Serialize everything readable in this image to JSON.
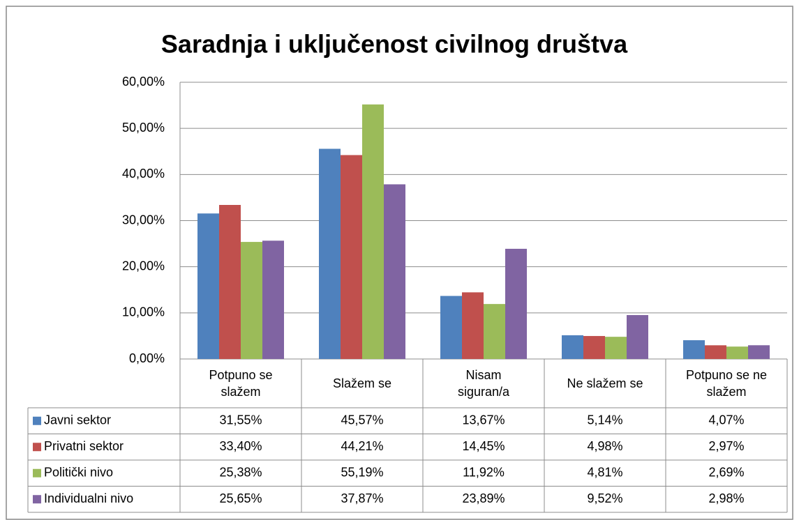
{
  "chart_data": {
    "type": "bar",
    "title": "Saradnja i uključenost civilnog društva",
    "categories": [
      "Potpuno se slažem",
      "Slažem se",
      "Nisam siguran/a",
      "Ne slažem se",
      "Potpuno se ne slažem"
    ],
    "series": [
      {
        "name": "Javni sektor",
        "color": "#4f81bd",
        "values": [
          31.55,
          45.57,
          13.67,
          5.14,
          4.07
        ],
        "value_labels": [
          "31,55%",
          "45,57%",
          "13,67%",
          "5,14%",
          "4,07%"
        ]
      },
      {
        "name": "Privatni sektor",
        "color": "#c0504d",
        "values": [
          33.4,
          44.21,
          14.45,
          4.98,
          2.97
        ],
        "value_labels": [
          "33,40%",
          "44,21%",
          "14,45%",
          "4,98%",
          "2,97%"
        ]
      },
      {
        "name": "Politički nivo",
        "color": "#9bbb59",
        "values": [
          25.38,
          55.19,
          11.92,
          4.81,
          2.69
        ],
        "value_labels": [
          "25,38%",
          "55,19%",
          "11,92%",
          "4,81%",
          "2,69%"
        ]
      },
      {
        "name": "Individualni nivo",
        "color": "#8064a2",
        "values": [
          25.65,
          37.87,
          23.89,
          9.52,
          2.98
        ],
        "value_labels": [
          "25,65%",
          "37,87%",
          "23,89%",
          "9,52%",
          "2,98%"
        ]
      }
    ],
    "ylim": [
      0,
      60
    ],
    "yticks": [
      {
        "value": 0,
        "label": "0,00%"
      },
      {
        "value": 10,
        "label": "10,00%"
      },
      {
        "value": 20,
        "label": "20,00%"
      },
      {
        "value": 30,
        "label": "30,00%"
      },
      {
        "value": 40,
        "label": "40,00%"
      },
      {
        "value": 50,
        "label": "50,00%"
      },
      {
        "value": 60,
        "label": "60,00%"
      }
    ],
    "grid": true
  }
}
